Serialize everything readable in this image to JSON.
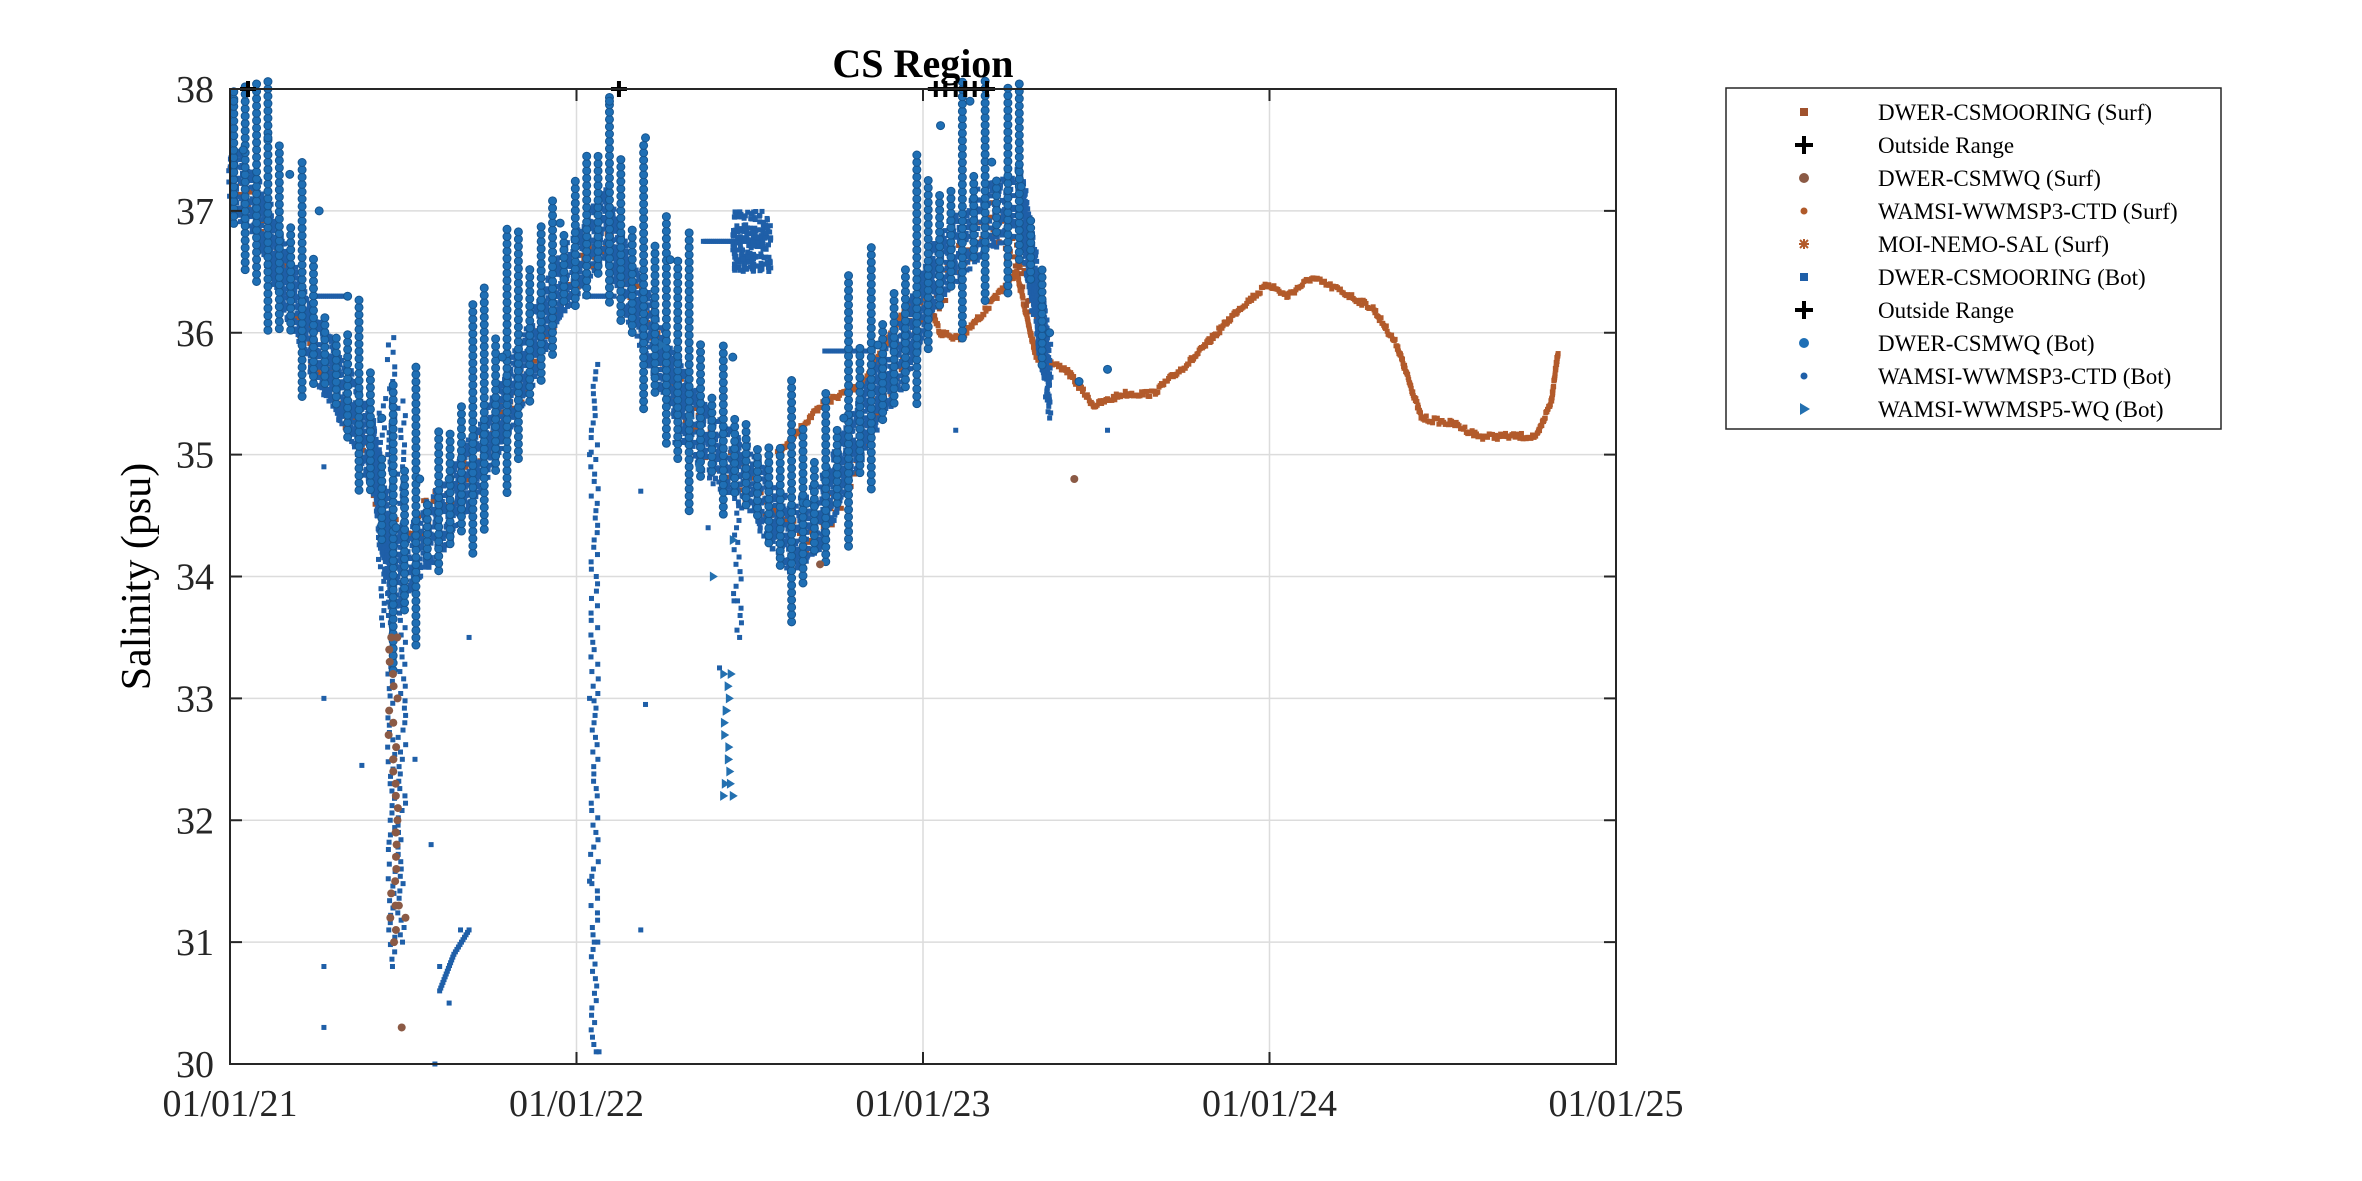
{
  "chart_data": {
    "type": "scatter",
    "title": "CS Region",
    "xlabel": "",
    "ylabel": "Salinity (psu)",
    "xlim": [
      "01/01/21",
      "01/01/25"
    ],
    "ylim": [
      30,
      38
    ],
    "x_ticks": [
      "01/01/21",
      "01/01/22",
      "01/01/23",
      "01/01/24",
      "01/01/25"
    ],
    "y_ticks": [
      "30",
      "31",
      "32",
      "33",
      "34",
      "35",
      "36",
      "37",
      "38"
    ],
    "grid": true,
    "legend_position": "outside-right",
    "legend": [
      {
        "name": "DWER-CSMOORING (Surf)",
        "marker": "square",
        "color": "#A0522D"
      },
      {
        "name": "Outside Range",
        "marker": "plus",
        "color": "#000000"
      },
      {
        "name": "DWER-CSMWQ (Surf)",
        "marker": "circle",
        "color": "#8B5A45"
      },
      {
        "name": "WAMSI-WWMSP3-CTD (Surf)",
        "marker": "dot",
        "color": "#B05A2A"
      },
      {
        "name": "MOI-NEMO-SAL (Surf)",
        "marker": "star",
        "color": "#B25A2B"
      },
      {
        "name": "DWER-CSMOORING (Bot)",
        "marker": "square",
        "color": "#1F5FA8"
      },
      {
        "name": "Outside Range",
        "marker": "plus",
        "color": "#000000"
      },
      {
        "name": "DWER-CSMWQ (Bot)",
        "marker": "circle",
        "color": "#1F6FB5"
      },
      {
        "name": "WAMSI-WWMSP3-CTD (Bot)",
        "marker": "dot",
        "color": "#1F5FA8"
      },
      {
        "name": "WAMSI-WWMSP5-WQ (Bot)",
        "marker": "triangle",
        "color": "#2370B0"
      }
    ],
    "series": {
      "moi_nemo_surf": [
        [
          "2022-08-01",
          35.0
        ],
        [
          "2022-09-15",
          35.4
        ],
        [
          "2022-11-01",
          35.6
        ],
        [
          "2022-12-15",
          36.2
        ],
        [
          "2023-01-01",
          36.35
        ],
        [
          "2023-01-20",
          36.0
        ],
        [
          "2023-02-10",
          35.95
        ],
        [
          "2023-03-10",
          36.2
        ],
        [
          "2023-04-10",
          36.5
        ],
        [
          "2023-05-01",
          35.8
        ],
        [
          "2023-06-01",
          35.7
        ],
        [
          "2023-07-01",
          35.4
        ],
        [
          "2023-08-01",
          35.5
        ],
        [
          "2023-09-01",
          35.5
        ],
        [
          "2023-10-15",
          35.8
        ],
        [
          "2023-12-01",
          36.2
        ],
        [
          "2024-01-01",
          36.4
        ],
        [
          "2024-01-20",
          36.3
        ],
        [
          "2024-02-15",
          36.45
        ],
        [
          "2024-03-15",
          36.35
        ],
        [
          "2024-04-20",
          36.2
        ],
        [
          "2024-05-15",
          35.9
        ],
        [
          "2024-06-10",
          35.3
        ],
        [
          "2024-07-15",
          35.25
        ],
        [
          "2024-08-10",
          35.15
        ],
        [
          "2024-09-10",
          35.15
        ],
        [
          "2024-10-10",
          35.15
        ],
        [
          "2024-10-25",
          35.45
        ],
        [
          "2024-11-01",
          35.85
        ]
      ],
      "dwer_mooring_surf": [
        [
          "2021-01-01",
          37.2
        ],
        [
          "2021-02-01",
          36.9
        ],
        [
          "2021-03-01",
          36.4
        ],
        [
          "2021-04-01",
          35.8
        ],
        [
          "2021-05-15",
          35.2
        ],
        [
          "2021-06-20",
          34.3
        ],
        [
          "2021-08-01",
          34.5
        ],
        [
          "2021-09-15",
          34.9
        ],
        [
          "2021-11-01",
          35.5
        ],
        [
          "2021-12-15",
          36.3
        ],
        [
          "2022-02-01",
          36.8
        ],
        [
          "2022-03-15",
          36.2
        ],
        [
          "2022-04-15",
          35.6
        ],
        [
          "2022-05-15",
          35.1
        ],
        [
          "2022-06-15",
          34.9
        ],
        [
          "2022-08-01",
          34.5
        ],
        [
          "2022-09-01",
          34.2
        ],
        [
          "2022-10-01",
          34.6
        ],
        [
          "2022-11-15",
          35.4
        ],
        [
          "2022-12-15",
          35.9
        ],
        [
          "2023-02-01",
          36.5
        ],
        [
          "2023-03-15",
          37.0
        ],
        [
          "2023-05-01",
          36.2
        ]
      ],
      "dwer_mooring_bot": [
        [
          "2021-01-01",
          37.3
        ],
        [
          "2021-02-01",
          37.0
        ],
        [
          "2021-03-01",
          36.4
        ],
        [
          "2021-04-01",
          35.9
        ],
        [
          "2021-05-01",
          35.5
        ],
        [
          "2021-06-01",
          35.0
        ],
        [
          "2021-06-20",
          34.0
        ],
        [
          "2021-07-15",
          34.2
        ],
        [
          "2021-08-15",
          34.5
        ],
        [
          "2021-09-15",
          34.9
        ],
        [
          "2021-11-01",
          35.6
        ],
        [
          "2021-12-15",
          36.4
        ],
        [
          "2022-02-01",
          36.9
        ],
        [
          "2022-03-01",
          36.3
        ],
        [
          "2022-04-01",
          35.8
        ],
        [
          "2022-05-01",
          35.3
        ],
        [
          "2022-06-01",
          35.0
        ],
        [
          "2022-07-01",
          34.8
        ],
        [
          "2022-08-15",
          34.3
        ],
        [
          "2022-09-15",
          34.5
        ],
        [
          "2022-10-15",
          35.0
        ],
        [
          "2022-11-15",
          35.5
        ],
        [
          "2022-12-15",
          35.9
        ],
        [
          "2023-01-15",
          36.5
        ],
        [
          "2023-03-01",
          36.9
        ],
        [
          "2023-04-15",
          37.1
        ],
        [
          "2023-05-15",
          35.6
        ]
      ],
      "dwer_mooring_bot_scatter": [
        [
          "2021-04-10",
          34.9
        ],
        [
          "2021-04-10",
          33.0
        ],
        [
          "2021-04-10",
          30.8
        ],
        [
          "2021-04-10",
          30.3
        ],
        [
          "2021-05-20",
          32.45
        ],
        [
          "2021-07-15",
          32.5
        ],
        [
          "2021-08-01",
          31.8
        ],
        [
          "2021-08-10",
          30.8
        ],
        [
          "2021-09-01",
          31.1
        ],
        [
          "2021-08-20",
          30.5
        ],
        [
          "2021-08-05",
          30.0
        ],
        [
          "2021-09-10",
          33.5
        ],
        [
          "2022-01-15",
          35.0
        ],
        [
          "2022-01-15",
          33.0
        ],
        [
          "2022-01-15",
          31.5
        ],
        [
          "2022-01-20",
          31.0
        ],
        [
          "2022-01-25",
          30.1
        ],
        [
          "2022-03-10",
          31.1
        ],
        [
          "2022-03-10",
          34.7
        ],
        [
          "2022-03-15",
          32.95
        ],
        [
          "2022-06-01",
          33.25
        ],
        [
          "2022-06-20",
          33.8
        ],
        [
          "2022-05-20",
          34.4
        ],
        [
          "2023-02-05",
          35.2
        ],
        [
          "2023-05-15",
          35.3
        ],
        [
          "2023-06-10",
          34.8
        ],
        [
          "2023-07-15",
          35.2
        ]
      ],
      "dwer_csmwq_bot": [
        [
          "2021-01-05",
          37.9
        ],
        [
          "2021-01-15",
          37.5
        ],
        [
          "2021-02-10",
          37.6
        ],
        [
          "2021-03-05",
          37.3
        ],
        [
          "2021-04-05",
          37.0
        ],
        [
          "2021-05-05",
          36.3
        ],
        [
          "2021-06-10",
          35.3
        ],
        [
          "2021-06-25",
          34.4
        ],
        [
          "2021-07-20",
          34.8
        ],
        [
          "2021-08-20",
          34.8
        ],
        [
          "2021-10-15",
          35.8
        ],
        [
          "2021-12-15",
          36.9
        ],
        [
          "2022-02-05",
          37.9
        ],
        [
          "2022-03-15",
          37.6
        ],
        [
          "2022-04-10",
          36.6
        ],
        [
          "2022-06-15",
          35.8
        ],
        [
          "2022-09-01",
          34.6
        ],
        [
          "2022-10-10",
          35.3
        ],
        [
          "2022-11-15",
          35.9
        ],
        [
          "2023-01-20",
          37.7
        ],
        [
          "2023-02-20",
          37.9
        ],
        [
          "2023-03-15",
          37.4
        ],
        [
          "2023-04-15",
          37.2
        ],
        [
          "2023-05-15",
          36.0
        ],
        [
          "2023-06-15",
          35.6
        ],
        [
          "2023-07-15",
          35.7
        ]
      ],
      "dwer_csmwq_surf": [
        [
          "2021-06-20",
          33.5
        ],
        [
          "2021-06-22",
          32.5
        ],
        [
          "2021-06-25",
          31.9
        ],
        [
          "2021-06-28",
          31.3
        ],
        [
          "2021-07-01",
          30.3
        ],
        [
          "2021-07-05",
          31.2
        ],
        [
          "2022-09-15",
          34.1
        ],
        [
          "2023-06-10",
          34.8
        ]
      ],
      "wwmsp5_wq_bot": [
        [
          "2022-05-01",
          35.3
        ],
        [
          "2022-05-10",
          34.9
        ],
        [
          "2022-06-05",
          33.2
        ],
        [
          "2022-06-08",
          32.9
        ],
        [
          "2022-06-10",
          32.5
        ],
        [
          "2022-06-12",
          32.3
        ],
        [
          "2022-06-15",
          32.2
        ],
        [
          "2022-06-15",
          34.3
        ],
        [
          "2022-05-25",
          34.0
        ],
        [
          "2022-04-01",
          35.9
        ]
      ],
      "outside_range": [
        [
          "2021-01-20",
          38.0
        ],
        [
          "2022-02-15",
          38.0
        ],
        [
          "2023-01-15",
          38.0
        ],
        [
          "2023-01-25",
          38.0
        ],
        [
          "2023-02-05",
          38.0
        ],
        [
          "2023-02-15",
          38.0
        ],
        [
          "2023-02-25",
          38.0
        ],
        [
          "2023-03-10",
          38.0
        ]
      ]
    }
  }
}
